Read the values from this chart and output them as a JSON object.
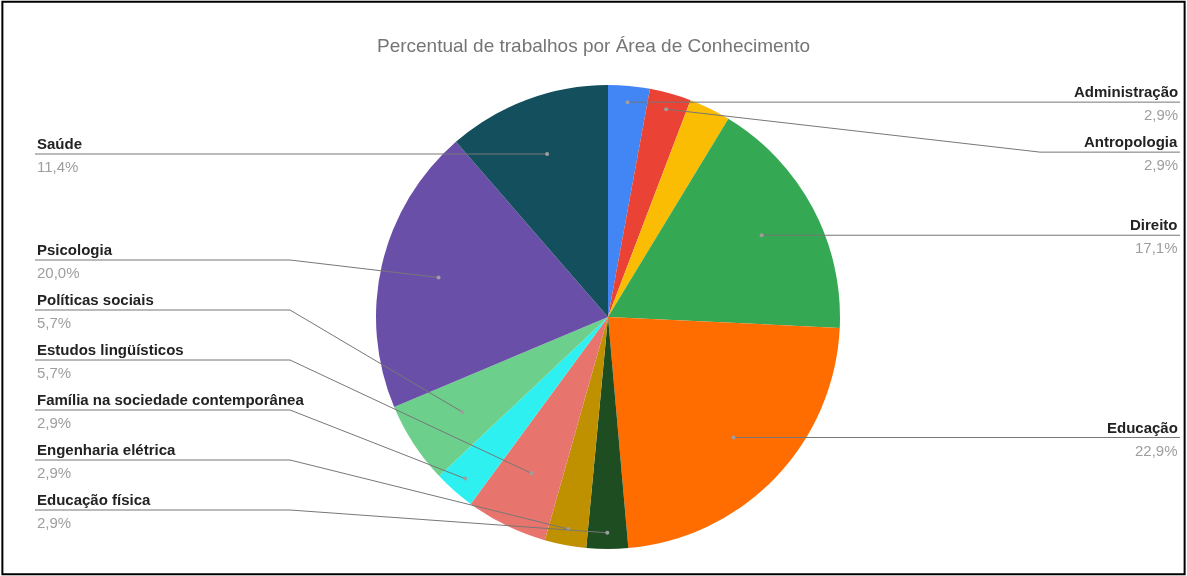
{
  "chart_data": {
    "type": "pie",
    "title": "Percentual de trabalhos por Área de Conhecimento",
    "categories": [
      "Administração",
      "Antropologia",
      null,
      "Direito",
      "Educação",
      "Educação física",
      "Engenharia elétrica",
      "Estudos lingüísticos",
      "Família na sociedade contemporânea",
      "Políticas sociais",
      "Psicologia",
      "Saúde"
    ],
    "values": [
      2.9,
      2.9,
      2.9,
      17.1,
      22.9,
      2.9,
      2.9,
      5.7,
      2.9,
      5.7,
      20.0,
      11.4
    ],
    "value_labels": [
      "2,9%",
      "2,9%",
      null,
      "17,1%",
      "22,9%",
      "2,9%",
      "2,9%",
      "5,7%",
      "2,9%",
      "5,7%",
      "20,0%",
      "11,4%"
    ],
    "colors": [
      "#4285f4",
      "#ea4335",
      "#fbbc04",
      "#34a853",
      "#ff6d01",
      "#1e4d21",
      "#bf9000",
      "#e8756d",
      "#2ef0f0",
      "#6ccf8c",
      "#6a4fa8",
      "#134f5c"
    ],
    "legend": false
  }
}
